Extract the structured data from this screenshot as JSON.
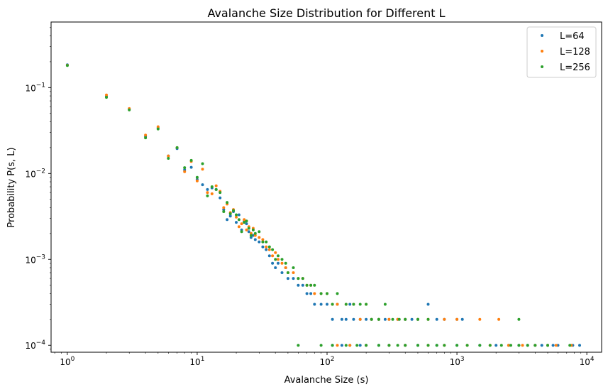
{
  "chart_data": {
    "type": "scatter",
    "title": "Avalanche Size Distribution for Different L",
    "xlabel": "Avalanche Size (s)",
    "ylabel": "Probability P(s, L)",
    "xscale": "log",
    "yscale": "log",
    "xlim": [
      0.75,
      13000
    ],
    "ylim": [
      8.3e-05,
      0.58
    ],
    "grid": false,
    "legend_position": "top-right",
    "x_ticks": [
      {
        "value": 1,
        "base": "10",
        "exp": "0"
      },
      {
        "value": 10,
        "base": "10",
        "exp": "1"
      },
      {
        "value": 100,
        "base": "10",
        "exp": "2"
      },
      {
        "value": 1000,
        "base": "10",
        "exp": "3"
      },
      {
        "value": 10000,
        "base": "10",
        "exp": "4"
      }
    ],
    "y_ticks": [
      {
        "value": 0.0001,
        "base": "10",
        "exp": "−4"
      },
      {
        "value": 0.001,
        "base": "10",
        "exp": "−3"
      },
      {
        "value": 0.01,
        "base": "10",
        "exp": "−2"
      },
      {
        "value": 0.1,
        "base": "10",
        "exp": "−1"
      }
    ],
    "series": [
      {
        "name": "L=64",
        "color": "#1f77b4",
        "points": [
          [
            1,
            0.184
          ],
          [
            2,
            0.079
          ],
          [
            3,
            0.056
          ],
          [
            4,
            0.027
          ],
          [
            5,
            0.034
          ],
          [
            6,
            0.016
          ],
          [
            7,
            0.0195
          ],
          [
            8,
            0.011
          ],
          [
            9,
            0.0118
          ],
          [
            10,
            0.0085
          ],
          [
            11,
            0.0074
          ],
          [
            12,
            0.0065
          ],
          [
            13,
            0.0068
          ],
          [
            14,
            0.0065
          ],
          [
            15,
            0.0052
          ],
          [
            16,
            0.0038
          ],
          [
            17,
            0.0029
          ],
          [
            18,
            0.0032
          ],
          [
            19,
            0.0036
          ],
          [
            20,
            0.0027
          ],
          [
            21,
            0.0033
          ],
          [
            22,
            0.0022
          ],
          [
            23,
            0.0028
          ],
          [
            24,
            0.0026
          ],
          [
            25,
            0.0021
          ],
          [
            26,
            0.0018
          ],
          [
            27,
            0.0019
          ],
          [
            28,
            0.0017
          ],
          [
            30,
            0.0016
          ],
          [
            32,
            0.0014
          ],
          [
            34,
            0.0013
          ],
          [
            36,
            0.0011
          ],
          [
            38,
            0.0009
          ],
          [
            40,
            0.0008
          ],
          [
            42,
            0.0009
          ],
          [
            45,
            0.0007
          ],
          [
            48,
            0.0008
          ],
          [
            50,
            0.0006
          ],
          [
            55,
            0.0006
          ],
          [
            60,
            0.0005
          ],
          [
            65,
            0.0005
          ],
          [
            70,
            0.0004
          ],
          [
            75,
            0.0004
          ],
          [
            80,
            0.0003
          ],
          [
            90,
            0.0003
          ],
          [
            100,
            0.0003
          ],
          [
            110,
            0.0002
          ],
          [
            120,
            0.0003
          ],
          [
            130,
            0.0002
          ],
          [
            140,
            0.0002
          ],
          [
            150,
            0.0003
          ],
          [
            160,
            0.0002
          ],
          [
            180,
            0.0002
          ],
          [
            200,
            0.0002
          ],
          [
            220,
            0.0002
          ],
          [
            250,
            0.0002
          ],
          [
            280,
            0.0002
          ],
          [
            300,
            0.0002
          ],
          [
            350,
            0.0002
          ],
          [
            400,
            0.0002
          ],
          [
            450,
            0.0002
          ],
          [
            500,
            0.0002
          ],
          [
            600,
            0.0003
          ],
          [
            700,
            0.0002
          ],
          [
            800,
            0.0002
          ],
          [
            1000,
            0.0002
          ],
          [
            1100,
            0.0002
          ],
          [
            110,
            0.0001
          ],
          [
            130,
            0.0001
          ],
          [
            150,
            0.0001
          ],
          [
            180,
            0.0001
          ],
          [
            200,
            0.0001
          ],
          [
            250,
            0.0001
          ],
          [
            300,
            0.0001
          ],
          [
            400,
            0.0001
          ],
          [
            500,
            0.0001
          ],
          [
            700,
            0.0001
          ],
          [
            1000,
            0.0001
          ],
          [
            1500,
            0.0001
          ],
          [
            2000,
            0.0001
          ],
          [
            2500,
            0.0001
          ],
          [
            3000,
            0.0001
          ],
          [
            3500,
            0.0001
          ],
          [
            4000,
            0.0001
          ],
          [
            4500,
            0.0001
          ],
          [
            5000,
            0.0001
          ],
          [
            5500,
            0.0001
          ],
          [
            6000,
            0.0001
          ],
          [
            7800,
            0.0001
          ],
          [
            8800,
            0.0001
          ]
        ]
      },
      {
        "name": "L=128",
        "color": "#ff7f0e",
        "points": [
          [
            1,
            0.182
          ],
          [
            2,
            0.082
          ],
          [
            3,
            0.057
          ],
          [
            4,
            0.028
          ],
          [
            5,
            0.035
          ],
          [
            6,
            0.016
          ],
          [
            7,
            0.02
          ],
          [
            8,
            0.0105
          ],
          [
            9,
            0.0138
          ],
          [
            10,
            0.0082
          ],
          [
            11,
            0.0112
          ],
          [
            12,
            0.006
          ],
          [
            13,
            0.0058
          ],
          [
            14,
            0.0072
          ],
          [
            15,
            0.0062
          ],
          [
            16,
            0.004
          ],
          [
            17,
            0.0044
          ],
          [
            18,
            0.0035
          ],
          [
            19,
            0.0038
          ],
          [
            20,
            0.0031
          ],
          [
            21,
            0.0024
          ],
          [
            22,
            0.0026
          ],
          [
            23,
            0.0029
          ],
          [
            24,
            0.0022
          ],
          [
            25,
            0.0024
          ],
          [
            26,
            0.002
          ],
          [
            27,
            0.0023
          ],
          [
            28,
            0.0019
          ],
          [
            30,
            0.0018
          ],
          [
            32,
            0.0017
          ],
          [
            34,
            0.0014
          ],
          [
            36,
            0.0013
          ],
          [
            38,
            0.0011
          ],
          [
            40,
            0.0012
          ],
          [
            42,
            0.001
          ],
          [
            45,
            0.0009
          ],
          [
            48,
            0.0008
          ],
          [
            50,
            0.0007
          ],
          [
            55,
            0.0007
          ],
          [
            60,
            0.0006
          ],
          [
            65,
            0.0006
          ],
          [
            70,
            0.0005
          ],
          [
            75,
            0.0005
          ],
          [
            80,
            0.0004
          ],
          [
            90,
            0.0004
          ],
          [
            100,
            0.0004
          ],
          [
            110,
            0.0003
          ],
          [
            120,
            0.0003
          ],
          [
            140,
            0.0003
          ],
          [
            160,
            0.0003
          ],
          [
            180,
            0.0002
          ],
          [
            200,
            0.0003
          ],
          [
            220,
            0.0002
          ],
          [
            250,
            0.0002
          ],
          [
            300,
            0.0002
          ],
          [
            350,
            0.0002
          ],
          [
            400,
            0.0002
          ],
          [
            500,
            0.0002
          ],
          [
            600,
            0.0002
          ],
          [
            800,
            0.0002
          ],
          [
            1000,
            0.0002
          ],
          [
            1500,
            0.0002
          ],
          [
            2100,
            0.0002
          ],
          [
            120,
            0.0001
          ],
          [
            150,
            0.0001
          ],
          [
            200,
            0.0001
          ],
          [
            300,
            0.0001
          ],
          [
            400,
            0.0001
          ],
          [
            600,
            0.0001
          ],
          [
            800,
            0.0001
          ],
          [
            1200,
            0.0001
          ],
          [
            1800,
            0.0001
          ],
          [
            2500,
            0.0001
          ],
          [
            3200,
            0.0001
          ],
          [
            4000,
            0.0001
          ],
          [
            5000,
            0.0001
          ],
          [
            5800,
            0.0001
          ],
          [
            7600,
            0.0001
          ]
        ]
      },
      {
        "name": "L=256",
        "color": "#2ca02c",
        "points": [
          [
            1,
            0.181
          ],
          [
            2,
            0.077
          ],
          [
            3,
            0.055
          ],
          [
            4,
            0.026
          ],
          [
            5,
            0.033
          ],
          [
            6,
            0.015
          ],
          [
            7,
            0.02
          ],
          [
            8,
            0.0117
          ],
          [
            9,
            0.0142
          ],
          [
            10,
            0.009
          ],
          [
            11,
            0.013
          ],
          [
            12,
            0.0055
          ],
          [
            13,
            0.007
          ],
          [
            14,
            0.0065
          ],
          [
            15,
            0.006
          ],
          [
            16,
            0.0036
          ],
          [
            17,
            0.0046
          ],
          [
            18,
            0.0034
          ],
          [
            19,
            0.0037
          ],
          [
            20,
            0.0033
          ],
          [
            21,
            0.0029
          ],
          [
            22,
            0.0021
          ],
          [
            23,
            0.0027
          ],
          [
            24,
            0.0028
          ],
          [
            25,
            0.0023
          ],
          [
            26,
            0.0019
          ],
          [
            27,
            0.0022
          ],
          [
            28,
            0.002
          ],
          [
            30,
            0.0021
          ],
          [
            32,
            0.0016
          ],
          [
            34,
            0.0016
          ],
          [
            36,
            0.0014
          ],
          [
            38,
            0.0013
          ],
          [
            40,
            0.001
          ],
          [
            42,
            0.0011
          ],
          [
            45,
            0.001
          ],
          [
            48,
            0.0009
          ],
          [
            50,
            0.0007
          ],
          [
            55,
            0.0008
          ],
          [
            60,
            0.0006
          ],
          [
            65,
            0.0006
          ],
          [
            70,
            0.0005
          ],
          [
            75,
            0.0005
          ],
          [
            80,
            0.0005
          ],
          [
            90,
            0.0004
          ],
          [
            100,
            0.0004
          ],
          [
            110,
            0.0003
          ],
          [
            120,
            0.0004
          ],
          [
            140,
            0.0003
          ],
          [
            160,
            0.0003
          ],
          [
            180,
            0.0003
          ],
          [
            200,
            0.0003
          ],
          [
            220,
            0.0002
          ],
          [
            250,
            0.0002
          ],
          [
            280,
            0.0003
          ],
          [
            320,
            0.0002
          ],
          [
            360,
            0.0002
          ],
          [
            400,
            0.0002
          ],
          [
            500,
            0.0002
          ],
          [
            600,
            0.0002
          ],
          [
            3000,
            0.0002
          ],
          [
            60,
            0.0001
          ],
          [
            90,
            0.0001
          ],
          [
            110,
            0.0001
          ],
          [
            140,
            0.0001
          ],
          [
            170,
            0.0001
          ],
          [
            200,
            0.0001
          ],
          [
            250,
            0.0001
          ],
          [
            300,
            0.0001
          ],
          [
            350,
            0.0001
          ],
          [
            400,
            0.0001
          ],
          [
            500,
            0.0001
          ],
          [
            600,
            0.0001
          ],
          [
            700,
            0.0001
          ],
          [
            800,
            0.0001
          ],
          [
            1000,
            0.0001
          ],
          [
            1200,
            0.0001
          ],
          [
            1500,
            0.0001
          ],
          [
            1800,
            0.0001
          ],
          [
            2200,
            0.0001
          ],
          [
            2600,
            0.0001
          ],
          [
            3000,
            0.0001
          ],
          [
            3500,
            0.0001
          ],
          [
            4000,
            0.0001
          ],
          [
            5000,
            0.0001
          ],
          [
            7400,
            0.0001
          ]
        ]
      }
    ]
  }
}
